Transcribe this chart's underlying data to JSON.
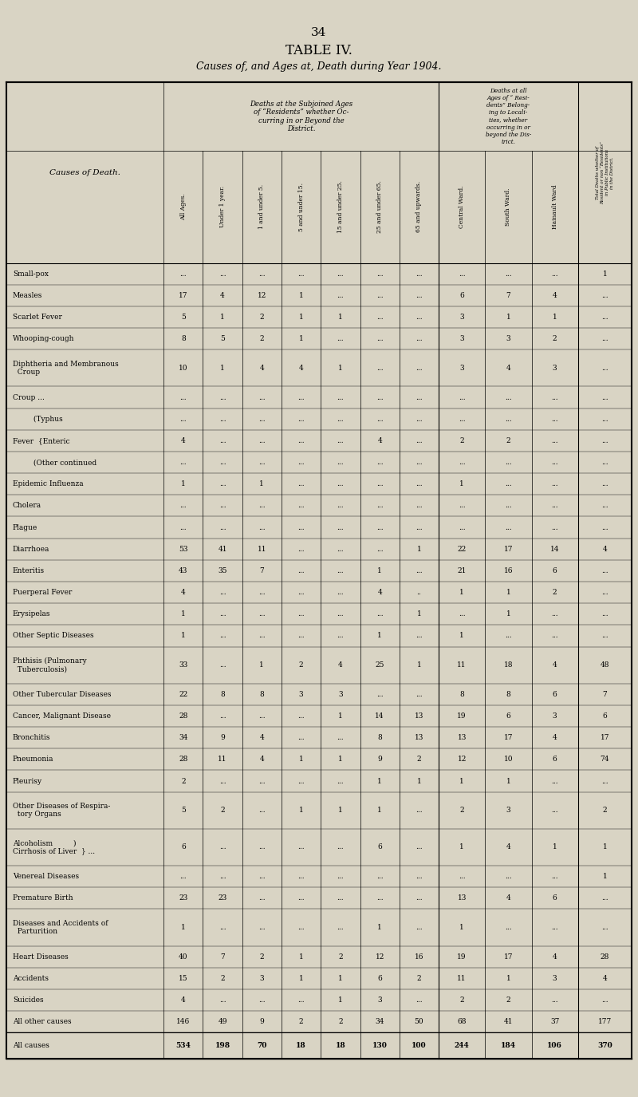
{
  "page_number": "34",
  "title": "TABLE IV.",
  "subtitle": "Causes of, and Ages at, Death during Year 1904.",
  "bg_color": "#d9d4c4",
  "header_groups": [
    {
      "label": "Deaths at the Subjoined Ages\nof \"Residents\" whether Oc-\ncurring in or Beyond the\nDistrict.",
      "span": [
        1,
        7
      ]
    },
    {
      "label": "Deaths at all\nAges of \" Resi-\ndents\" Belong-\ning to Locali-\nties, whether\noccurring in or\nbeyond the Dis-\ntrict.",
      "span": [
        8,
        10
      ]
    }
  ],
  "col_headers": [
    "Causes of Death.",
    "All Ages.",
    "Under 1 year.",
    "1 and under 5.",
    "5 and under 15.",
    "15 and under 25.",
    "25 and under 65.",
    "65 and upwards.",
    "Central Ward.",
    "South Ward.",
    "Hainault Ward",
    "Total Deaths whether of Resident or non \"Residents\" in Public Institutions in the District."
  ],
  "rows": [
    [
      "Small-pox",
      "...",
      "...",
      "...",
      "...",
      "...",
      "...",
      "...",
      "...",
      "...",
      "...",
      "1"
    ],
    [
      "Measles",
      "17",
      "4",
      "12",
      "1",
      "...",
      "...",
      "...",
      "6",
      "7",
      "4",
      "..."
    ],
    [
      "Scarlet Fever",
      "5",
      "1",
      "2",
      "1",
      "1",
      "...",
      "...",
      "3",
      "1",
      "1",
      "..."
    ],
    [
      "Whooping-cough",
      "8",
      "5",
      "2",
      "1",
      "...",
      "...",
      "...",
      "3",
      "3",
      "2",
      "..."
    ],
    [
      "Diphtheria and Membranous\n  Croup",
      "10",
      "1",
      "4",
      "4",
      "1",
      "...",
      "...",
      "3",
      "4",
      "3",
      "..."
    ],
    [
      "Croup ...",
      "...",
      "...",
      "...",
      "...",
      "...",
      "...",
      "...",
      "...",
      "...",
      "...",
      "..."
    ],
    [
      "         (Typhus",
      "...",
      "...",
      "...",
      "...",
      "...",
      "...",
      "...",
      "...",
      "...",
      "...",
      "..."
    ],
    [
      "Fever  {Enteric",
      "4",
      "...",
      "...",
      "...",
      "...",
      "4",
      "...",
      "2",
      "2",
      "...",
      "..."
    ],
    [
      "         (Other continued",
      "...",
      "...",
      "...",
      "...",
      "...",
      "...",
      "...",
      "...",
      "...",
      "...",
      "..."
    ],
    [
      "Epidemic Influenza",
      "1",
      "...",
      "1",
      "...",
      "...",
      "...",
      "...",
      "1",
      "...",
      "...",
      "..."
    ],
    [
      "Cholera",
      "...",
      "...",
      "...",
      "...",
      "...",
      "...",
      "...",
      "...",
      "...",
      "...",
      "..."
    ],
    [
      "Plague",
      "...",
      "...",
      "...",
      "...",
      "...",
      "...",
      "...",
      "...",
      "...",
      "...",
      "..."
    ],
    [
      "Diarrhoea",
      "53",
      "41",
      "11",
      "...",
      "...",
      "...",
      "1",
      "22",
      "17",
      "14",
      "4"
    ],
    [
      "Enteritis",
      "43",
      "35",
      "7",
      "...",
      "...",
      "1",
      "...",
      "21",
      "16",
      "6",
      "..."
    ],
    [
      "Puerperal Fever",
      "4",
      "...",
      "...",
      "...",
      "...",
      "4",
      "..",
      "1",
      "1",
      "2",
      "..."
    ],
    [
      "Erysipelas",
      "1",
      "...",
      "...",
      "...",
      "...",
      "...",
      "1",
      "...",
      "1",
      "...",
      "..."
    ],
    [
      "Other Septic Diseases",
      "1",
      "...",
      "...",
      "...",
      "...",
      "1",
      "...",
      "1",
      "...",
      "...",
      "..."
    ],
    [
      "Phthisis (Pulmonary\n  Tuberculosis)",
      "33",
      "...",
      "1",
      "2",
      "4",
      "25",
      "1",
      "11",
      "18",
      "4",
      "48"
    ],
    [
      "Other Tubercular Diseases",
      "22",
      "8",
      "8",
      "3",
      "3",
      "...",
      "...",
      "8",
      "8",
      "6",
      "7"
    ],
    [
      "Cancer, Malignant Disease",
      "28",
      "...",
      "...",
      "...",
      "1",
      "14",
      "13",
      "19",
      "6",
      "3",
      "6"
    ],
    [
      "Bronchitis",
      "34",
      "9",
      "4",
      "...",
      "...",
      "8",
      "13",
      "13",
      "17",
      "4",
      "17"
    ],
    [
      "Pneumonia",
      "28",
      "11",
      "4",
      "1",
      "1",
      "9",
      "2",
      "12",
      "10",
      "6",
      "74"
    ],
    [
      "Pleurisy",
      "2",
      "...",
      "...",
      "...",
      "...",
      "1",
      "1",
      "1",
      "1",
      "...",
      "..."
    ],
    [
      "Other Diseases of Respira-\n  tory Organs",
      "5",
      "2",
      "...",
      "1",
      "1",
      "1",
      "...",
      "2",
      "3",
      "...",
      "2"
    ],
    [
      "Alcoholism         )\nCirrhosis of Liver  } ...",
      "6",
      "...",
      "...",
      "...",
      "...",
      "6",
      "...",
      "1",
      "4",
      "1",
      "1"
    ],
    [
      "Venereal Diseases",
      "...",
      "...",
      "...",
      "...",
      "...",
      "...",
      "...",
      "...",
      "...",
      "...",
      "1"
    ],
    [
      "Premature Birth",
      "23",
      "23",
      "...",
      "...",
      "...",
      "...",
      "...",
      "13",
      "4",
      "6",
      "..."
    ],
    [
      "Diseases and Accidents of\n  Parturition",
      "1",
      "...",
      "...",
      "...",
      "...",
      "1",
      "...",
      "1",
      "...",
      "...",
      "..."
    ],
    [
      "Heart Diseases",
      "40",
      "7",
      "2",
      "1",
      "2",
      "12",
      "16",
      "19",
      "17",
      "4",
      "28"
    ],
    [
      "Accidents",
      "15",
      "2",
      "3",
      "1",
      "1",
      "6",
      "2",
      "11",
      "1",
      "3",
      "4"
    ],
    [
      "Suicides",
      "4",
      "...",
      "...",
      "...",
      "1",
      "3",
      "...",
      "2",
      "2",
      "...",
      "..."
    ],
    [
      "All other causes",
      "146",
      "49",
      "9",
      "2",
      "2",
      "34",
      "50",
      "68",
      "41",
      "37",
      "177"
    ],
    [
      "All causes",
      "534",
      "198",
      "70",
      "18",
      "18",
      "130",
      "100",
      "244",
      "184",
      "106",
      "370"
    ]
  ]
}
